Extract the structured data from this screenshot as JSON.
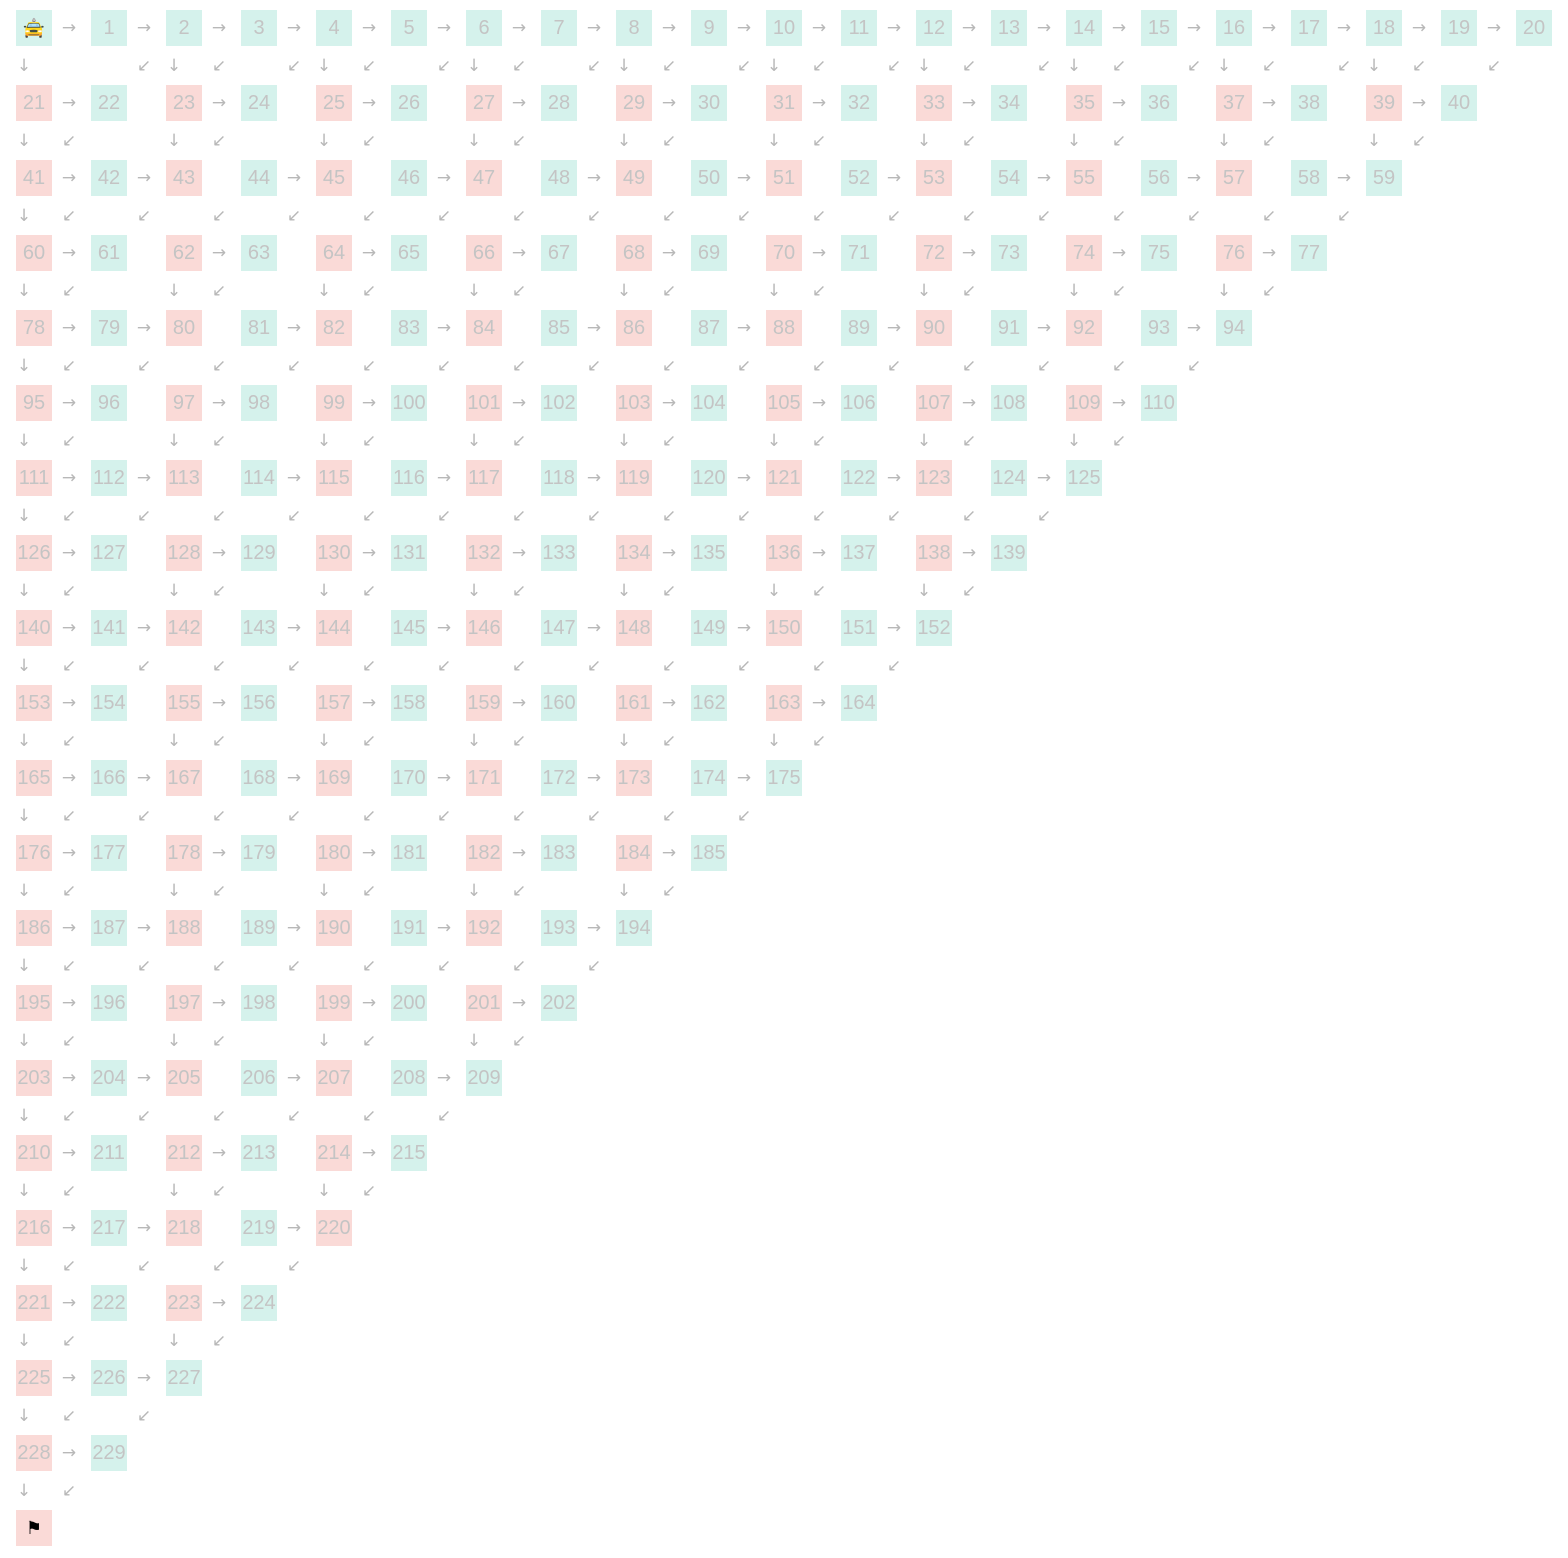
{
  "colors": {
    "green_cell": "#d5f2ec",
    "red_cell": "#fadad7",
    "label": "#c4c4c4",
    "arrow": "#b8b8b8"
  },
  "icons": {
    "start": {
      "name": "taxi-icon",
      "glyph": "🚖"
    },
    "goal": {
      "name": "flag-icon",
      "glyph": "⚑"
    }
  },
  "rows": [
    {
      "cells": [
        "🚖",
        "1",
        "2",
        "3",
        "4",
        "5",
        "6",
        "7",
        "8",
        "9",
        "10",
        "11",
        "12",
        "13",
        "14",
        "15",
        "16",
        "17",
        "18",
        "19",
        "20"
      ],
      "colors": "GGGGGGGGGGGGGGGGGGGGG",
      "right": "11111111111111111111"
    },
    {
      "cells": [
        "21",
        "22",
        "23",
        "24",
        "25",
        "26",
        "27",
        "28",
        "29",
        "30",
        "31",
        "32",
        "33",
        "34",
        "35",
        "36",
        "37",
        "38",
        "39",
        "40"
      ],
      "colors": "RGRGRGRGRGRGRGRGRGRG",
      "right": "1010101010101010101"
    },
    {
      "cells": [
        "41",
        "42",
        "43",
        "44",
        "45",
        "46",
        "47",
        "48",
        "49",
        "50",
        "51",
        "52",
        "53",
        "54",
        "55",
        "56",
        "57",
        "58",
        "59"
      ],
      "colors": "RGRGRGRGRGRGRGRGRGG",
      "right": "110101010101010101"
    },
    {
      "cells": [
        "60",
        "61",
        "62",
        "63",
        "64",
        "65",
        "66",
        "67",
        "68",
        "69",
        "70",
        "71",
        "72",
        "73",
        "74",
        "75",
        "76",
        "77"
      ],
      "colors": "RGRGRGRGRGRGRGRGRG",
      "right": "10101010101010101"
    },
    {
      "cells": [
        "78",
        "79",
        "80",
        "81",
        "82",
        "83",
        "84",
        "85",
        "86",
        "87",
        "88",
        "89",
        "90",
        "91",
        "92",
        "93",
        "94"
      ],
      "colors": "RGRGRGRGRGRGRGRGG",
      "right": "1101010101010101"
    },
    {
      "cells": [
        "95",
        "96",
        "97",
        "98",
        "99",
        "100",
        "101",
        "102",
        "103",
        "104",
        "105",
        "106",
        "107",
        "108",
        "109",
        "110"
      ],
      "colors": "RGRGRGRGRGRGRGRG",
      "right": "101010101010101"
    },
    {
      "cells": [
        "111",
        "112",
        "113",
        "114",
        "115",
        "116",
        "117",
        "118",
        "119",
        "120",
        "121",
        "122",
        "123",
        "124",
        "125"
      ],
      "colors": "RGRGRGRGRGRGRGG",
      "right": "11010101010101"
    },
    {
      "cells": [
        "126",
        "127",
        "128",
        "129",
        "130",
        "131",
        "132",
        "133",
        "134",
        "135",
        "136",
        "137",
        "138",
        "139"
      ],
      "colors": "RGRGRGRGRGRGRG",
      "right": "1010101010101"
    },
    {
      "cells": [
        "140",
        "141",
        "142",
        "143",
        "144",
        "145",
        "146",
        "147",
        "148",
        "149",
        "150",
        "151",
        "152"
      ],
      "colors": "RGRGRGRGRGRGG",
      "right": "110101010101"
    },
    {
      "cells": [
        "153",
        "154",
        "155",
        "156",
        "157",
        "158",
        "159",
        "160",
        "161",
        "162",
        "163",
        "164"
      ],
      "colors": "RGRGRGRGRGRG",
      "right": "10101010101"
    },
    {
      "cells": [
        "165",
        "166",
        "167",
        "168",
        "169",
        "170",
        "171",
        "172",
        "173",
        "174",
        "175"
      ],
      "colors": "RGRGRGRGRGG",
      "right": "1101010101"
    },
    {
      "cells": [
        "176",
        "177",
        "178",
        "179",
        "180",
        "181",
        "182",
        "183",
        "184",
        "185"
      ],
      "colors": "RGRGRGRGRG",
      "right": "101010101"
    },
    {
      "cells": [
        "186",
        "187",
        "188",
        "189",
        "190",
        "191",
        "192",
        "193",
        "194"
      ],
      "colors": "RGRGRGRGG",
      "right": "11010101"
    },
    {
      "cells": [
        "195",
        "196",
        "197",
        "198",
        "199",
        "200",
        "201",
        "202"
      ],
      "colors": "RGRGRGRG",
      "right": "1010101"
    },
    {
      "cells": [
        "203",
        "204",
        "205",
        "206",
        "207",
        "208",
        "209"
      ],
      "colors": "RGRGRGG",
      "right": "110101"
    },
    {
      "cells": [
        "210",
        "211",
        "212",
        "213",
        "214",
        "215"
      ],
      "colors": "RGRGRG",
      "right": "10101"
    },
    {
      "cells": [
        "216",
        "217",
        "218",
        "219",
        "220"
      ],
      "colors": "RGRGR",
      "right": "1101"
    },
    {
      "cells": [
        "221",
        "222",
        "223",
        "224"
      ],
      "colors": "RGRG",
      "right": "101"
    },
    {
      "cells": [
        "225",
        "226",
        "227"
      ],
      "colors": "RGG",
      "right": "11"
    },
    {
      "cells": [
        "228",
        "229"
      ],
      "colors": "RG",
      "right": "1"
    },
    {
      "cells": [
        "⚑"
      ],
      "colors": "R",
      "right": ""
    }
  ],
  "gaps": [
    {
      "down": "101010101010101010100",
      "diag": "01111111111111111111"
    },
    {
      "down": "10101010101010101010",
      "diag": "1010101010101010101"
    },
    {
      "down": "1000000000000000000",
      "diag": "111111111111111111"
    },
    {
      "down": "101010101010101010",
      "diag": "10101010101010101"
    },
    {
      "down": "10000000000000000",
      "diag": "1111111111111111"
    },
    {
      "down": "1010101010101010",
      "diag": "101010101010101"
    },
    {
      "down": "100000000000000",
      "diag": "11111111111111"
    },
    {
      "down": "10101010101010",
      "diag": "1010101010101"
    },
    {
      "down": "1000000000000",
      "diag": "111111111111"
    },
    {
      "down": "101010101010",
      "diag": "10101010101"
    },
    {
      "down": "10000000000",
      "diag": "1111111111"
    },
    {
      "down": "1010101010",
      "diag": "101010101"
    },
    {
      "down": "100000000",
      "diag": "11111111"
    },
    {
      "down": "10101010",
      "diag": "1010101"
    },
    {
      "down": "1000000",
      "diag": "111111"
    },
    {
      "down": "101010",
      "diag": "10101"
    },
    {
      "down": "10000",
      "diag": "1111"
    },
    {
      "down": "1010",
      "diag": "101"
    },
    {
      "down": "100",
      "diag": "11"
    },
    {
      "down": "10",
      "diag": "1"
    }
  ],
  "arrows": {
    "right": "→",
    "down": "↓",
    "diag": "↙"
  }
}
